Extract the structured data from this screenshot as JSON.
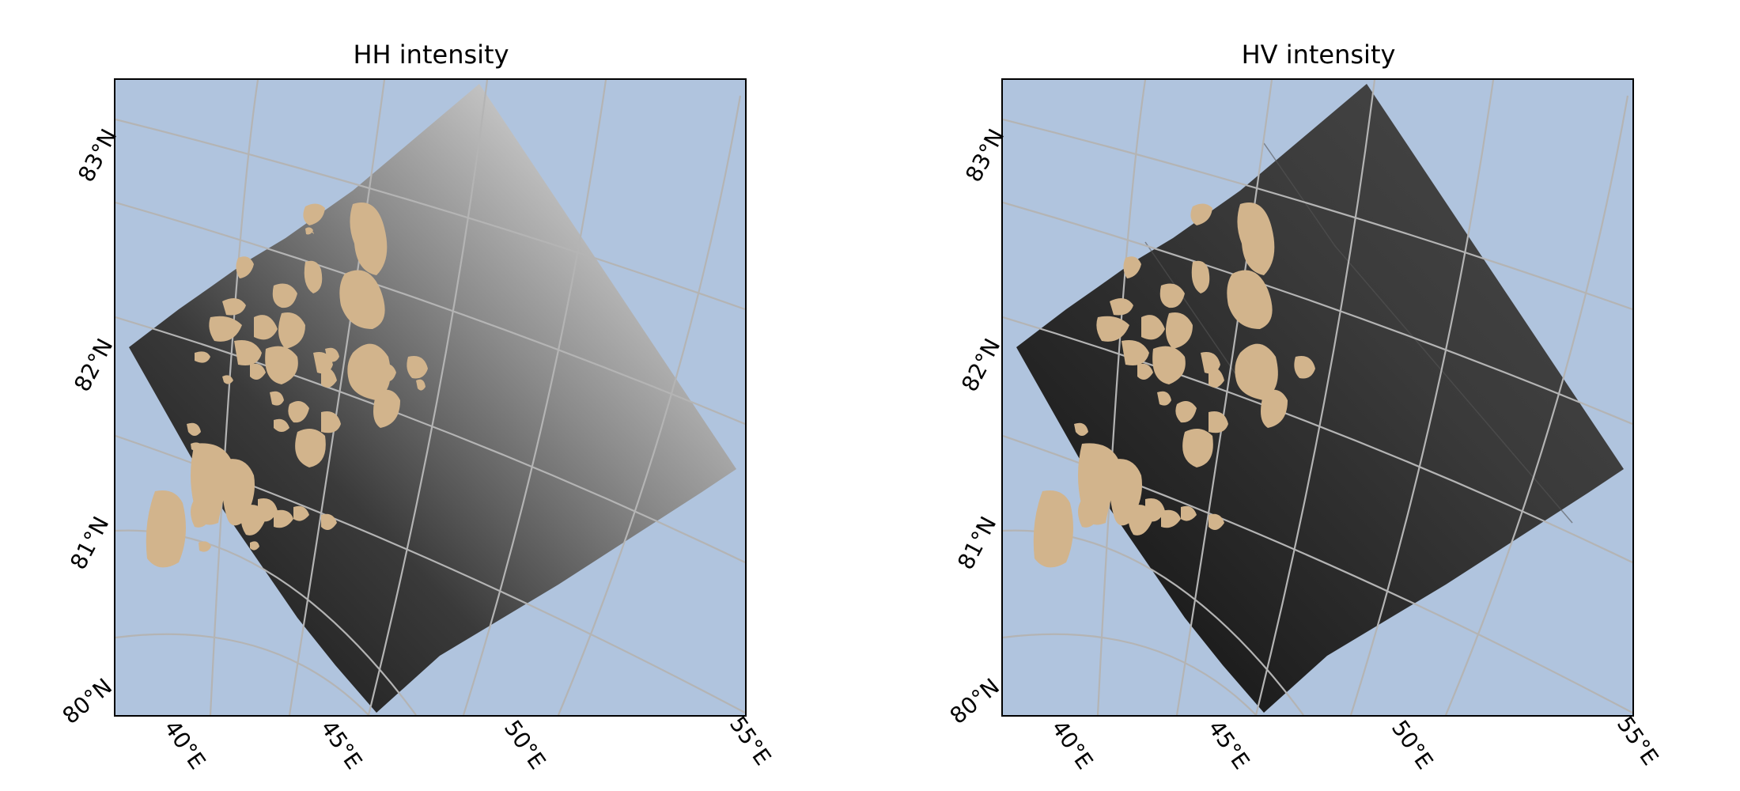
{
  "panels": [
    {
      "id": "hh",
      "title": "HH intensity",
      "lat_labels": [
        "83°N",
        "82°N",
        "81°N",
        "80°N"
      ],
      "lon_labels": [
        "40°E",
        "45°E",
        "50°E",
        "55°E"
      ]
    },
    {
      "id": "hv",
      "title": "HV intensity",
      "lat_labels": [
        "83°N",
        "82°N",
        "81°N",
        "80°N"
      ],
      "lon_labels": [
        "40°E",
        "45°E",
        "50°E",
        "55°E"
      ]
    }
  ],
  "colors": {
    "ocean": "#b0c4de",
    "land": "#d2b48c",
    "gridline": "#b4b4b4",
    "frame": "#000000"
  }
}
